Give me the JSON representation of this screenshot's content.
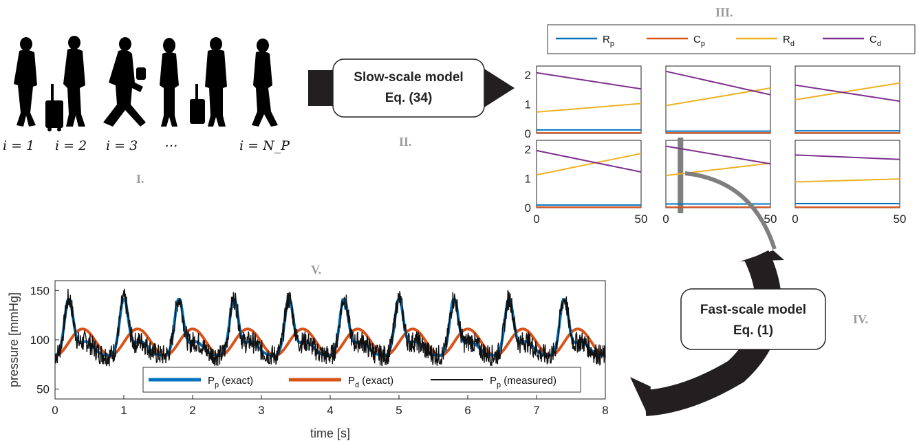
{
  "labels": {
    "stage1": "I.",
    "stage2": "II.",
    "stage3": "III.",
    "stage4": "IV.",
    "stage5": "V."
  },
  "people": {
    "count_shown": 6,
    "indices": [
      "i = 1",
      "i = 2",
      "i = 3",
      "⋯",
      "i = N_P"
    ],
    "colors": {
      "silhouette": "#000000"
    }
  },
  "slow_model": {
    "title": "Slow-scale model",
    "equation": "Eq. (34)"
  },
  "fast_model": {
    "title": "Fast-scale model",
    "equation": "Eq. (1)"
  },
  "param_legend": [
    {
      "name": "R",
      "sub": "p",
      "color": "#0072BD"
    },
    {
      "name": "C",
      "sub": "p",
      "color": "#D95319"
    },
    {
      "name": "R",
      "sub": "d",
      "color": "#EDB120"
    },
    {
      "name": "C",
      "sub": "d",
      "color": "#7E2F8E"
    }
  ],
  "chart_data": [
    {
      "type": "line",
      "title": "",
      "description_grid": "2x3 small multiples of slow-scale parameter trajectories",
      "x_range": [
        0,
        50
      ],
      "y_range": [
        0,
        2.3
      ],
      "x_ticks": [
        "0",
        "50"
      ],
      "y_ticks": [
        "0",
        "1",
        "2"
      ],
      "series_order": [
        "Rp",
        "Cp",
        "Rd",
        "Cd"
      ],
      "panels": [
        {
          "row": 0,
          "col": 0,
          "Rp": [
            0.12,
            0.12
          ],
          "Cp": [
            0.02,
            0.02
          ],
          "Rd": [
            0.73,
            1.02
          ],
          "Cd": [
            2.07,
            1.52
          ]
        },
        {
          "row": 0,
          "col": 1,
          "Rp": [
            0.08,
            0.08
          ],
          "Cp": [
            0.02,
            0.02
          ],
          "Rd": [
            0.95,
            1.55
          ],
          "Cd": [
            2.12,
            1.32
          ]
        },
        {
          "row": 0,
          "col": 2,
          "Rp": [
            0.09,
            0.09
          ],
          "Cp": [
            0.02,
            0.02
          ],
          "Rd": [
            1.15,
            1.72
          ],
          "Cd": [
            1.65,
            1.1
          ]
        },
        {
          "row": 1,
          "col": 0,
          "Rp": [
            0.09,
            0.09
          ],
          "Cp": [
            0.02,
            0.02
          ],
          "Rd": [
            1.12,
            1.85
          ],
          "Cd": [
            1.95,
            1.22
          ]
        },
        {
          "row": 1,
          "col": 1,
          "Rp": [
            0.13,
            0.13
          ],
          "Cp": [
            0.02,
            0.02
          ],
          "Rd": [
            1.1,
            1.52
          ],
          "Cd": [
            2.1,
            1.5
          ]
        },
        {
          "row": 1,
          "col": 2,
          "Rp": [
            0.14,
            0.14
          ],
          "Cp": [
            0.02,
            0.02
          ],
          "Rd": [
            0.88,
            0.98
          ],
          "Cd": [
            1.8,
            1.65
          ]
        }
      ],
      "highlight": {
        "panel": [
          1,
          1
        ],
        "x": 7
      }
    },
    {
      "type": "line",
      "title": "",
      "xlabel": "time [s]",
      "ylabel": "pressure [mmHg]",
      "xlim": [
        0,
        8
      ],
      "ylim": [
        40,
        160
      ],
      "x_ticks": [
        0,
        1,
        2,
        3,
        4,
        5,
        6,
        7,
        8
      ],
      "y_ticks": [
        50,
        100,
        150
      ],
      "beat_period_s": 0.8,
      "series": [
        {
          "name": "P_p (exact)",
          "label": "P",
          "sub": "p",
          "suffix": " (exact)",
          "color": "#0072BD",
          "min": 84,
          "max": 141,
          "shape": "systolic peaks each beat"
        },
        {
          "name": "P_d (exact)",
          "label": "P",
          "sub": "d",
          "suffix": " (exact)",
          "color": "#D95319",
          "min": 84,
          "max": 111,
          "shape": "smooth sinusoid per beat"
        },
        {
          "name": "P_p (measured)",
          "label": "P",
          "sub": "p",
          "suffix": " (measured)",
          "color": "#111111",
          "shape": "P_p exact plus noise"
        }
      ],
      "legend_position": "bottom"
    }
  ]
}
